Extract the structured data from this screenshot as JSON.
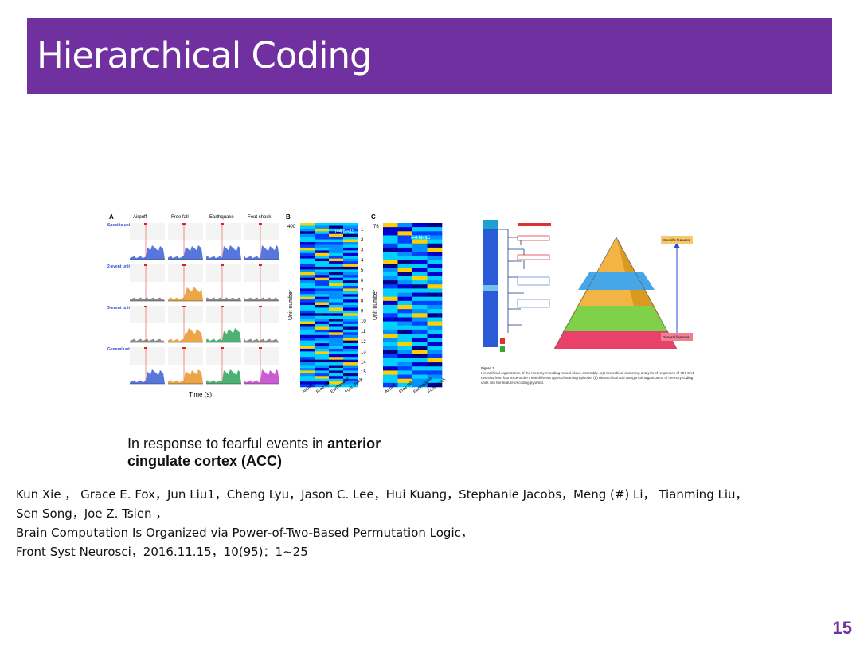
{
  "slide": {
    "title": "Hierarchical Coding",
    "page_number": "15",
    "accent_color": "#7030a0"
  },
  "figure_left": {
    "panel_a": "A",
    "panel_b": "B",
    "panel_c": "C",
    "columns": [
      "Airpuff",
      "Free fall",
      "Earthquake",
      "Foot shock"
    ],
    "rows": [
      "Specific unit",
      "2-event unit",
      "3-event unit",
      "General unit"
    ],
    "xlabel": "Time (s)",
    "ylabel_b": "Unit number",
    "ylabel_c": "Unit number",
    "b_top_tick": "400",
    "c_top_tick": "76",
    "b_legend": "i=4 N=15",
    "c_legend": "i=4 N=15",
    "cluster_labels": [
      "1",
      "2",
      "3",
      "4",
      "5",
      "6",
      "7",
      "8",
      "9",
      "10",
      "11",
      "12",
      "13",
      "14",
      "15"
    ]
  },
  "figure_right": {
    "top_label": "Specific features",
    "bottom_label": "General features",
    "caption_head": "Figure 1.",
    "caption_body": "Hierarchical organization of the memory-encoding neural clique assembly. (a) Hierarchical clustering analysis of responses of 757 CA1 neurons from four mice to the three different types of startling episode. (b) Hierarchical and categorical organization of memory coding units into the feature-encoding pyramid."
  },
  "caption": {
    "line1_prefix": "In response to fearful events in ",
    "line1_bold": "anterior",
    "line2_bold": "cingulate cortex (ACC)"
  },
  "reference": {
    "authors_line1": "Kun Xie ， Grace E. Fox，Jun Liu1，Cheng Lyu，Jason C. Lee，Hui Kuang，Stephanie Jacobs，Meng (#) Li， Tianming Liu，",
    "authors_line2": "Sen Song，Joe Z. Tsien ，",
    "title": "Brain Computation Is Organized via Power-of-Two-Based Permutation Logic，",
    "journal": "Front Syst Neurosci，2016.11.15，10(95)：1~25"
  }
}
